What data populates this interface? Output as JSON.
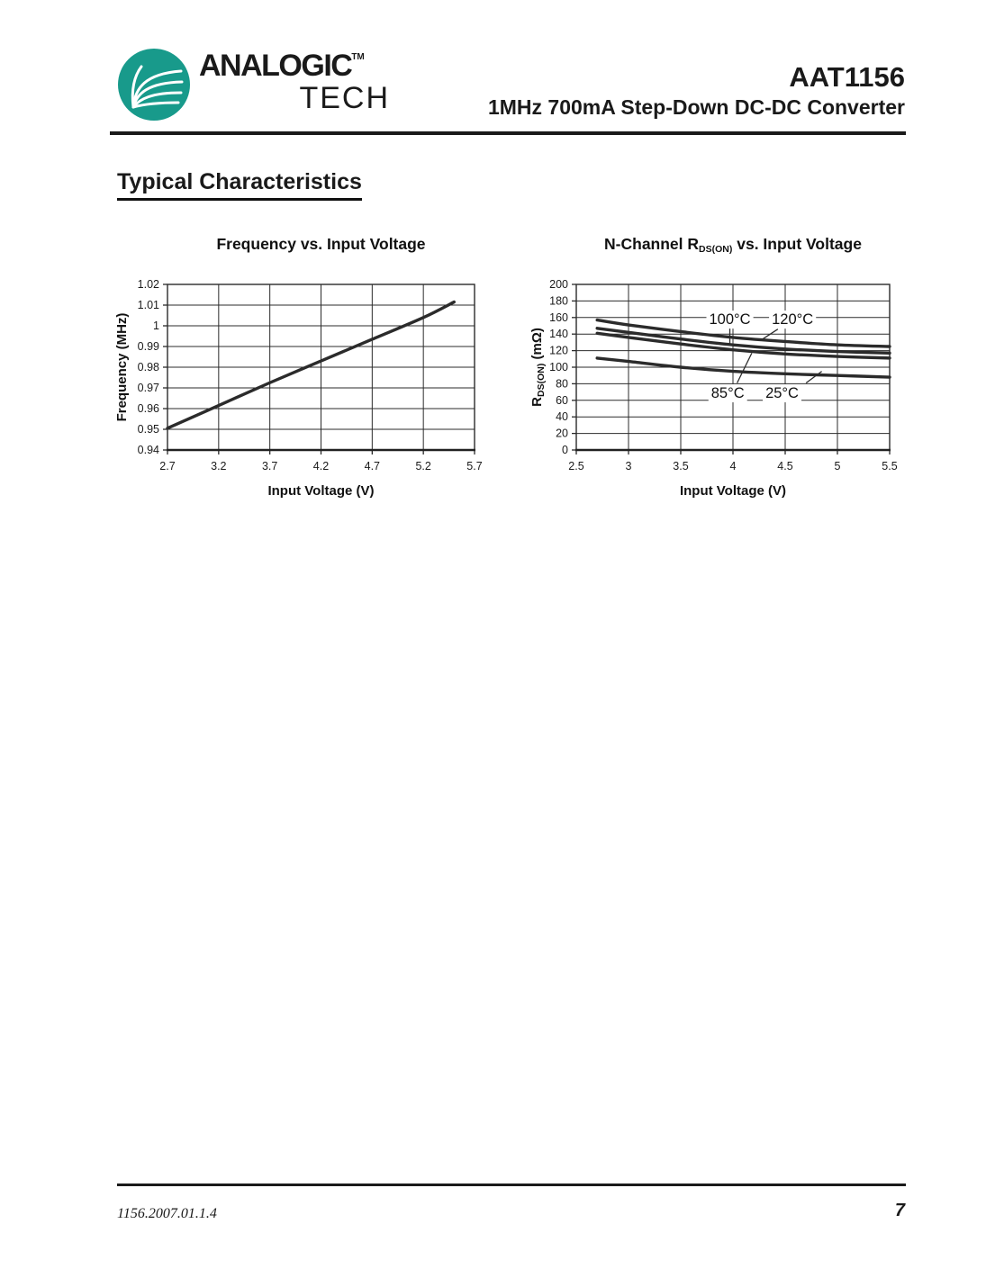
{
  "header": {
    "logo": {
      "brand_top": "ANALOGIC",
      "brand_bottom": "TECH",
      "trademark": "TM",
      "logo_color": "#189a8b",
      "logo_icon": "leaf-circle-icon"
    },
    "part_number": "AAT1156",
    "subtitle": "1MHz 700mA Step-Down DC-DC Converter"
  },
  "section_title": "Typical Characteristics",
  "footer": {
    "revision": "1156.2007.01.1.4",
    "page_number": "7"
  },
  "chart_data": [
    {
      "type": "line",
      "title": "Frequency vs. Input Voltage",
      "xlabel": "Input Voltage (V)",
      "ylabel": "Frequency (MHz)",
      "xlim": [
        2.7,
        5.7
      ],
      "ylim": [
        0.94,
        1.02
      ],
      "xticks": [
        "2.7",
        "3.2",
        "3.7",
        "4.2",
        "4.7",
        "5.2",
        "5.7"
      ],
      "yticks": [
        "1.02",
        "1.01",
        "1",
        "0.99",
        "0.98",
        "0.97",
        "0.96",
        "0.95",
        "0.94"
      ],
      "grid": true,
      "legend": "none",
      "series": [
        {
          "name": "frequency",
          "x": [
            2.7,
            3.2,
            3.7,
            4.2,
            4.7,
            5.2,
            5.5
          ],
          "y": [
            0.9505,
            0.9615,
            0.9725,
            0.983,
            0.9935,
            1.004,
            1.0115
          ]
        }
      ],
      "annotations": []
    },
    {
      "type": "line",
      "title_rich": [
        {
          "t": "N-Channel R"
        },
        {
          "t": "DS(ON)",
          "sub": true
        },
        {
          "t": " vs. Input Voltage"
        }
      ],
      "xlabel": "Input Voltage (V)",
      "ylabel_rich": [
        {
          "t": "R"
        },
        {
          "t": "DS(ON)",
          "sub": true
        },
        {
          "t": " (mΩ)"
        }
      ],
      "xlim": [
        2.5,
        5.5
      ],
      "ylim": [
        0,
        200
      ],
      "xticks": [
        "2.5",
        "3",
        "3.5",
        "4",
        "4.5",
        "5",
        "5.5"
      ],
      "yticks": [
        "200",
        "180",
        "160",
        "140",
        "120",
        "100",
        "80",
        "60",
        "40",
        "20",
        "0"
      ],
      "grid": true,
      "legend": "inline-annotations",
      "series": [
        {
          "name": "120°C",
          "x": [
            2.7,
            3.0,
            3.5,
            4.0,
            4.5,
            5.0,
            5.5
          ],
          "y": [
            157,
            151,
            143,
            136,
            131,
            127,
            125
          ]
        },
        {
          "name": "100°C",
          "x": [
            2.7,
            3.0,
            3.5,
            4.0,
            4.5,
            5.0,
            5.5
          ],
          "y": [
            147,
            142,
            134,
            127,
            122,
            119,
            117
          ]
        },
        {
          "name": "85°C",
          "x": [
            2.7,
            3.0,
            3.5,
            4.0,
            4.5,
            5.0,
            5.5
          ],
          "y": [
            141,
            136,
            128,
            121,
            116,
            113,
            111
          ]
        },
        {
          "name": "25°C",
          "x": [
            2.7,
            3.0,
            3.5,
            4.0,
            4.5,
            5.0,
            5.5
          ],
          "y": [
            111,
            107,
            100,
            95,
            92,
            90,
            88
          ]
        }
      ],
      "annotations": [
        {
          "label": "100°C",
          "x": 3.97,
          "y": 158,
          "leader": [
            [
              3.97,
              147
            ],
            [
              3.97,
              127
            ]
          ]
        },
        {
          "label": "120°C",
          "x": 4.57,
          "y": 158,
          "leader": [
            [
              4.43,
              146
            ],
            [
              4.26,
              132
            ]
          ]
        },
        {
          "label": "85°C",
          "x": 3.95,
          "y": 69,
          "leader": [
            [
              4.04,
              81
            ],
            [
              4.18,
              117
            ]
          ]
        },
        {
          "label": "25°C",
          "x": 4.47,
          "y": 69,
          "leader": [
            [
              4.7,
              81
            ],
            [
              4.85,
              95
            ]
          ]
        }
      ]
    }
  ]
}
